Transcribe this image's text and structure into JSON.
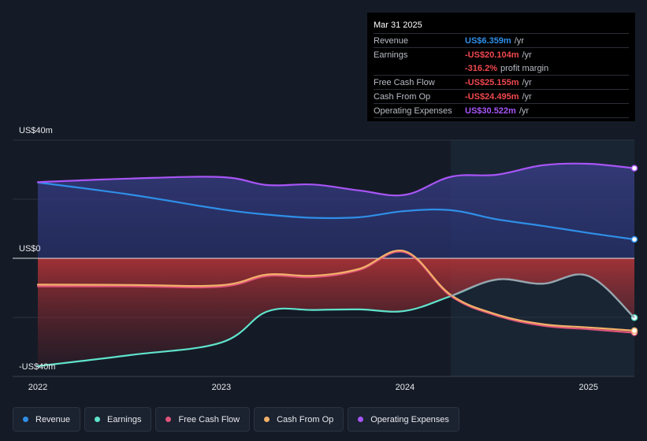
{
  "tooltip": {
    "date": "Mar 31 2025",
    "rows": [
      {
        "name": "Revenue",
        "value": "US$6.359m",
        "unit": "/yr",
        "color": "#2f8fe8"
      },
      {
        "name": "Earnings",
        "value": "-US$20.104m",
        "unit": "/yr",
        "color": "#f0484f"
      },
      {
        "name": "",
        "value": "-316.2%",
        "unit": "profit margin",
        "color": "#f0484f"
      },
      {
        "name": "Free Cash Flow",
        "value": "-US$25.155m",
        "unit": "/yr",
        "color": "#f0484f"
      },
      {
        "name": "Cash From Op",
        "value": "-US$24.495m",
        "unit": "/yr",
        "color": "#f0484f"
      },
      {
        "name": "Operating Expenses",
        "value": "US$30.522m",
        "unit": "/yr",
        "color": "#a855f7"
      }
    ]
  },
  "chart_data": {
    "type": "line",
    "ylim": [
      -40,
      40
    ],
    "xlim": [
      2021.9,
      2025.25
    ],
    "y_labels": [
      "US$40m",
      "US$0",
      "-US$40m"
    ],
    "x_ticks": [
      "2022",
      "2023",
      "2024",
      "2025"
    ],
    "x_tick_values": [
      2022,
      2023,
      2024,
      2025
    ],
    "highlight_start": 2024.25,
    "grid": true,
    "series": [
      {
        "name": "Revenue",
        "color": "#2f8fe8",
        "points": [
          [
            2022,
            25.7
          ],
          [
            2022.5,
            21.6
          ],
          [
            2023,
            16.6
          ],
          [
            2023.25,
            14.8
          ],
          [
            2023.5,
            13.7
          ],
          [
            2023.75,
            13.9
          ],
          [
            2024,
            16.0
          ],
          [
            2024.25,
            16.3
          ],
          [
            2024.5,
            13.2
          ],
          [
            2024.75,
            11.0
          ],
          [
            2025,
            8.6
          ],
          [
            2025.25,
            6.4
          ]
        ]
      },
      {
        "name": "Earnings",
        "color": "#5fe3cc",
        "points": [
          [
            2022,
            -36.5
          ],
          [
            2022.5,
            -32.8
          ],
          [
            2023,
            -28.5
          ],
          [
            2023.25,
            -18.0
          ],
          [
            2023.5,
            -17.5
          ],
          [
            2023.75,
            -17.3
          ],
          [
            2024,
            -17.8
          ],
          [
            2024.25,
            -12.8
          ],
          [
            2024.5,
            -7.2
          ],
          [
            2024.75,
            -8.6
          ],
          [
            2025,
            -6.0
          ],
          [
            2025.25,
            -20.1
          ]
        ]
      },
      {
        "name": "Free Cash Flow",
        "color": "#e0547a",
        "points": [
          [
            2022,
            -9.5
          ],
          [
            2022.5,
            -9.5
          ],
          [
            2023,
            -9.6
          ],
          [
            2023.25,
            -6.0
          ],
          [
            2023.5,
            -6.4
          ],
          [
            2023.75,
            -4.0
          ],
          [
            2024,
            2.0
          ],
          [
            2024.25,
            -12.8
          ],
          [
            2024.5,
            -19.4
          ],
          [
            2024.75,
            -22.8
          ],
          [
            2025,
            -24.0
          ],
          [
            2025.25,
            -25.2
          ]
        ]
      },
      {
        "name": "Cash From Op",
        "color": "#f2b168",
        "points": [
          [
            2022,
            -8.9
          ],
          [
            2022.5,
            -9.0
          ],
          [
            2023,
            -9.1
          ],
          [
            2023.25,
            -5.5
          ],
          [
            2023.5,
            -5.9
          ],
          [
            2023.75,
            -3.6
          ],
          [
            2024,
            2.4
          ],
          [
            2024.25,
            -12.4
          ],
          [
            2024.5,
            -19.0
          ],
          [
            2024.75,
            -22.3
          ],
          [
            2025,
            -23.4
          ],
          [
            2025.25,
            -24.5
          ]
        ]
      },
      {
        "name": "Operating Expenses",
        "color": "#a855f7",
        "points": [
          [
            2022,
            25.8
          ],
          [
            2022.5,
            27.0
          ],
          [
            2023,
            27.5
          ],
          [
            2023.25,
            24.8
          ],
          [
            2023.5,
            25.0
          ],
          [
            2023.75,
            23.0
          ],
          [
            2024,
            21.5
          ],
          [
            2024.25,
            27.6
          ],
          [
            2024.5,
            28.3
          ],
          [
            2024.75,
            31.5
          ],
          [
            2025,
            32.0
          ],
          [
            2025.25,
            30.5
          ]
        ]
      }
    ]
  },
  "legend": [
    {
      "label": "Revenue",
      "color": "#2f8fe8"
    },
    {
      "label": "Earnings",
      "color": "#5fe3cc"
    },
    {
      "label": "Free Cash Flow",
      "color": "#e0547a"
    },
    {
      "label": "Cash From Op",
      "color": "#f2b168"
    },
    {
      "label": "Operating Expenses",
      "color": "#a855f7"
    }
  ]
}
